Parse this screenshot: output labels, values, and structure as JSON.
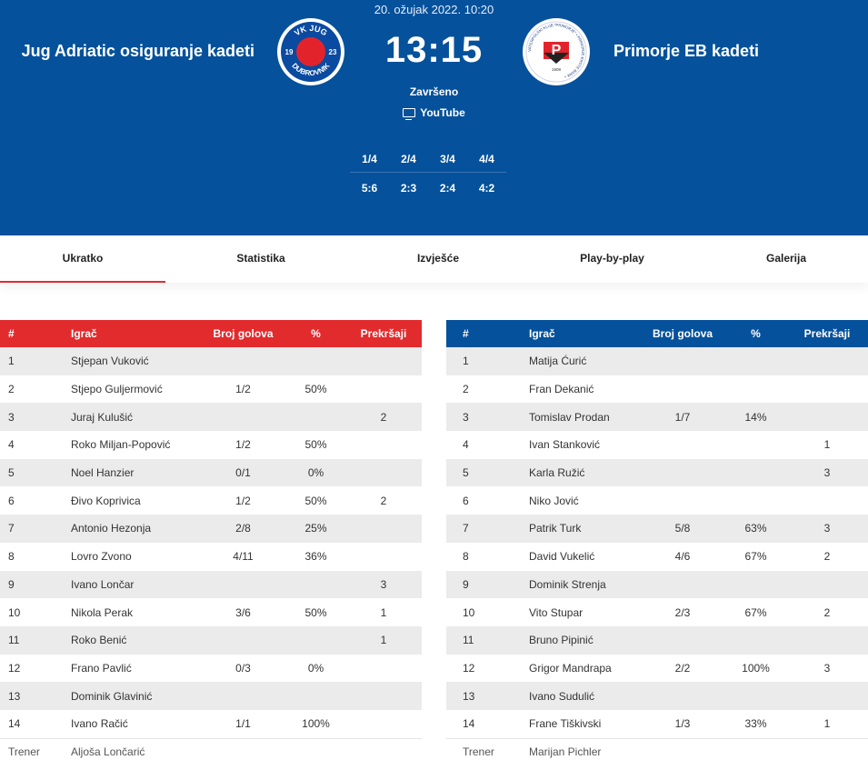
{
  "match": {
    "date": "20. ožujak 2022. 10:20",
    "home_team": "Jug Adriatic osiguranje kadeti",
    "away_team": "Primorje EB kadeti",
    "score": "13:15",
    "status": "Završeno",
    "tv": "YouTube",
    "home_logo_text": {
      "top": "VK JUG",
      "left": "19",
      "right": "23",
      "bottom": "DUBROVNIK"
    },
    "away_logo_text": {
      "ring": "VATERPOLSKI KLUB \"PRIMORJE\" • PRIMORJE-ERSTE BANK •",
      "letter": "P",
      "year": "1908"
    },
    "quarters": {
      "labels": [
        "1/4",
        "2/4",
        "3/4",
        "4/4"
      ],
      "scores": [
        "5:6",
        "2:3",
        "2:4",
        "4:2"
      ]
    }
  },
  "tabs": [
    "Ukratko",
    "Statistika",
    "Izvješće",
    "Play-by-play",
    "Galerija"
  ],
  "columns": [
    "#",
    "Igrač",
    "Broj golova",
    "%",
    "Prekršaji"
  ],
  "home": {
    "players": [
      {
        "num": "1",
        "name": "Stjepan Vuković",
        "goals": "",
        "pct": "",
        "fouls": ""
      },
      {
        "num": "2",
        "name": "Stjepo Guljermović",
        "goals": "1/2",
        "pct": "50%",
        "fouls": ""
      },
      {
        "num": "3",
        "name": "Juraj Kulušić",
        "goals": "",
        "pct": "",
        "fouls": "2"
      },
      {
        "num": "4",
        "name": "Roko Miljan-Popović",
        "goals": "1/2",
        "pct": "50%",
        "fouls": ""
      },
      {
        "num": "5",
        "name": "Noel Hanzier",
        "goals": "0/1",
        "pct": "0%",
        "fouls": ""
      },
      {
        "num": "6",
        "name": "Đivo Koprivica",
        "goals": "1/2",
        "pct": "50%",
        "fouls": "2"
      },
      {
        "num": "7",
        "name": "Antonio Hezonja",
        "goals": "2/8",
        "pct": "25%",
        "fouls": ""
      },
      {
        "num": "8",
        "name": "Lovro Zvono",
        "goals": "4/11",
        "pct": "36%",
        "fouls": ""
      },
      {
        "num": "9",
        "name": "Ivano Lončar",
        "goals": "",
        "pct": "",
        "fouls": "3"
      },
      {
        "num": "10",
        "name": "Nikola Perak",
        "goals": "3/6",
        "pct": "50%",
        "fouls": "1"
      },
      {
        "num": "11",
        "name": "Roko Benić",
        "goals": "",
        "pct": "",
        "fouls": "1"
      },
      {
        "num": "12",
        "name": "Frano Pavlić",
        "goals": "0/3",
        "pct": "0%",
        "fouls": ""
      },
      {
        "num": "13",
        "name": "Dominik Glavinić",
        "goals": "",
        "pct": "",
        "fouls": ""
      },
      {
        "num": "14",
        "name": "Ivano Račić",
        "goals": "1/1",
        "pct": "100%",
        "fouls": ""
      }
    ],
    "coach_label": "Trener",
    "coach": "Aljoša Lončarić"
  },
  "away": {
    "players": [
      {
        "num": "1",
        "name": "Matija Ćurić",
        "goals": "",
        "pct": "",
        "fouls": ""
      },
      {
        "num": "2",
        "name": "Fran Dekanić",
        "goals": "",
        "pct": "",
        "fouls": ""
      },
      {
        "num": "3",
        "name": "Tomislav Prodan",
        "goals": "1/7",
        "pct": "14%",
        "fouls": ""
      },
      {
        "num": "4",
        "name": "Ivan Stanković",
        "goals": "",
        "pct": "",
        "fouls": "1"
      },
      {
        "num": "5",
        "name": "Karla Ružić",
        "goals": "",
        "pct": "",
        "fouls": "3"
      },
      {
        "num": "6",
        "name": "Niko Jović",
        "goals": "",
        "pct": "",
        "fouls": ""
      },
      {
        "num": "7",
        "name": "Patrik Turk",
        "goals": "5/8",
        "pct": "63%",
        "fouls": "3"
      },
      {
        "num": "8",
        "name": "David Vukelić",
        "goals": "4/6",
        "pct": "67%",
        "fouls": "2"
      },
      {
        "num": "9",
        "name": "Dominik Strenja",
        "goals": "",
        "pct": "",
        "fouls": ""
      },
      {
        "num": "10",
        "name": "Vito Stupar",
        "goals": "2/3",
        "pct": "67%",
        "fouls": "2"
      },
      {
        "num": "11",
        "name": "Bruno Pipinić",
        "goals": "",
        "pct": "",
        "fouls": ""
      },
      {
        "num": "12",
        "name": "Grigor Mandrapa",
        "goals": "2/2",
        "pct": "100%",
        "fouls": "3"
      },
      {
        "num": "13",
        "name": "Ivano Sudulić",
        "goals": "",
        "pct": "",
        "fouls": ""
      },
      {
        "num": "14",
        "name": "Frane Tiškivski",
        "goals": "1/3",
        "pct": "33%",
        "fouls": "1"
      }
    ],
    "coach_label": "Trener",
    "coach": "Marijan Pichler"
  },
  "colors": {
    "header_bg": "#05519b",
    "home_accent": "#e22b2d",
    "away_accent": "#05519b",
    "row_stripe": "#ebebeb"
  }
}
